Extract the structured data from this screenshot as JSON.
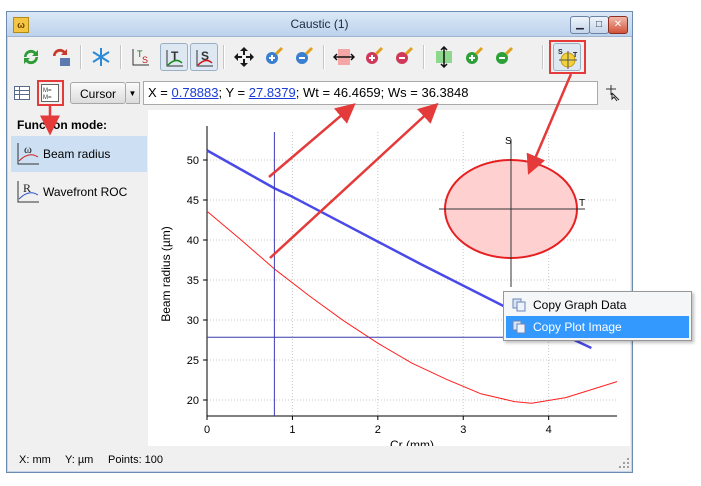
{
  "window": {
    "title": "Caustic (1)",
    "app_icon_text": "ω"
  },
  "window_controls": {
    "minimize": "▁",
    "maximize": "□",
    "close": "✕"
  },
  "toolbar": {
    "icons": [
      "refresh-icon",
      "refresh-list-icon",
      "freeze-icon",
      "ts-toggle-icon",
      "t-plot-icon",
      "s-plot-icon",
      "pan-icon",
      "zoom-in-icon",
      "zoom-out-icon",
      "x-range-icon",
      "x-zoom-in-icon",
      "x-zoom-out-icon",
      "y-range-icon",
      "y-zoom-in-icon",
      "y-zoom-out-icon",
      "ellipse-view-icon"
    ]
  },
  "cursor_button": {
    "label": "Cursor"
  },
  "readout": {
    "x_label": "X = ",
    "x_value": "0.78883",
    "sep1": "; Y = ",
    "y_value": "27.8379",
    "rest": "; Wt = 46.4659; Ws = 36.3848"
  },
  "sidebar": {
    "heading": "Function mode:",
    "items": [
      {
        "label": "Beam radius",
        "selected": true
      },
      {
        "label": "Wavefront ROC",
        "selected": false
      }
    ]
  },
  "chart_data": {
    "type": "line",
    "xlabel": "Cr (mm)",
    "ylabel": "Beam radius (µm)",
    "xlim": [
      0,
      4.8
    ],
    "ylim": [
      18,
      53.5
    ],
    "xticks": [
      "0",
      "1",
      "2",
      "3",
      "4"
    ],
    "yticks": [
      "20",
      "25",
      "30",
      "35",
      "40",
      "45",
      "50"
    ],
    "grid": true,
    "series": [
      {
        "color": "#4a4ae8",
        "width": 2.5,
        "x": [
          0,
          0.5,
          0.78883,
          1.0,
          1.5,
          2.0,
          2.5,
          3.0,
          3.5,
          4.0,
          4.5
        ],
        "y": [
          51.2,
          48.2,
          46.4659,
          45.4,
          42.6,
          39.8,
          37.0,
          34.3,
          31.6,
          29.0,
          26.5
        ]
      },
      {
        "color": "#ff2020",
        "width": 1,
        "x": [
          0,
          0.4,
          0.78883,
          1.2,
          1.6,
          2.0,
          2.4,
          2.8,
          3.2,
          3.6,
          3.8,
          4.2,
          4.8
        ],
        "y": [
          43.6,
          40.0,
          36.3848,
          33.0,
          29.9,
          27.1,
          24.6,
          22.6,
          20.8,
          19.8,
          19.6,
          20.3,
          22.3
        ]
      }
    ],
    "cursor": {
      "x": 0.78883,
      "y": 27.8379
    },
    "inset_labels": {
      "s": "S",
      "t": "T"
    }
  },
  "context_menu": {
    "items": [
      {
        "label": "Copy Graph Data"
      },
      {
        "label": "Copy Plot Image",
        "highlighted": true
      }
    ]
  },
  "statusbar": {
    "x_unit": "X: mm",
    "y_unit": "Y: µm",
    "points": "Points: 100"
  },
  "colors": {
    "annotation": "#e43a3a",
    "ellipse_fill": "#ffd0d0",
    "ellipse_stroke": "#e62020"
  }
}
